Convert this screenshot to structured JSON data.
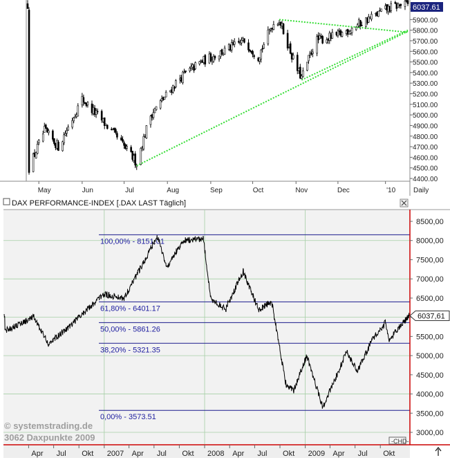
{
  "chart_data": [
    {
      "type": "candlestick",
      "title": "",
      "period_label": "Daily",
      "ylim": [
        4400,
        6100
      ],
      "y_ticks": [
        "6000.00",
        "5900.00",
        "5800.00",
        "5700.00",
        "5600.00",
        "5500.00",
        "5400.00",
        "5300.00",
        "5200.00",
        "5100.00",
        "5000.00",
        "4900.00",
        "4800.00",
        "4700.00",
        "4600.00",
        "4500.00",
        "4400.00"
      ],
      "x_labels": [
        "May",
        "Jun",
        "Jul",
        "Aug",
        "Sep",
        "Oct",
        "Nov",
        "Dec",
        "'10"
      ],
      "last_value_label": "6037.61",
      "approx_close_path": [
        {
          "d": "2009-04-24",
          "c": 4500
        },
        {
          "d": "2009-05-05",
          "c": 4850
        },
        {
          "d": "2009-05-15",
          "c": 4700
        },
        {
          "d": "2009-06-01",
          "c": 5150
        },
        {
          "d": "2009-06-15",
          "c": 4950
        },
        {
          "d": "2009-06-25",
          "c": 4800
        },
        {
          "d": "2009-07-10",
          "c": 4550
        },
        {
          "d": "2009-07-20",
          "c": 5000
        },
        {
          "d": "2009-08-10",
          "c": 5350
        },
        {
          "d": "2009-08-25",
          "c": 5500
        },
        {
          "d": "2009-09-10",
          "c": 5600
        },
        {
          "d": "2009-09-25",
          "c": 5700
        },
        {
          "d": "2009-10-05",
          "c": 5550
        },
        {
          "d": "2009-10-15",
          "c": 5850
        },
        {
          "d": "2009-10-20",
          "c": 5900
        },
        {
          "d": "2009-11-01",
          "c": 5450
        },
        {
          "d": "2009-11-05",
          "c": 5350
        },
        {
          "d": "2009-11-15",
          "c": 5700
        },
        {
          "d": "2009-12-01",
          "c": 5750
        },
        {
          "d": "2009-12-15",
          "c": 5850
        },
        {
          "d": "2010-01-05",
          "c": 6000
        },
        {
          "d": "2010-01-15",
          "c": 6040
        }
      ],
      "trendlines": [
        {
          "from": {
            "d": "2009-07-10",
            "v": 4520
          },
          "to": {
            "d": "2010-01-20",
            "v": 5790
          }
        },
        {
          "from": {
            "d": "2009-10-20",
            "v": 5900
          },
          "to": {
            "d": "2010-01-20",
            "v": 5780
          }
        },
        {
          "from": {
            "d": "2009-11-05",
            "v": 5330
          },
          "to": {
            "d": "2010-01-20",
            "v": 5800
          }
        }
      ],
      "colors": {
        "candles": "#000000",
        "trendline": "#33dd33",
        "last_value_bg": "#1a237e"
      }
    },
    {
      "type": "line",
      "title": "DAX PERFORMANCE-INDEX [.DAX LAST Täglich]",
      "ylim": [
        2750,
        8750
      ],
      "y_ticks": [
        "8500,00",
        "8000,00",
        "7500,00",
        "7000,00",
        "6500,00",
        "6000,00",
        "5500,00",
        "5000,00",
        "4500,00",
        "4000,00",
        "3500,00",
        "3000,00"
      ],
      "x_labels": [
        "Apr",
        "Jul",
        "Okt",
        "2007",
        "Apr",
        "Jul",
        "Okt",
        "2008",
        "Apr",
        "Jul",
        "Okt",
        "2009",
        "Apr",
        "Jul",
        "Okt"
      ],
      "last_value_label": "6037,61",
      "fibonacci_levels": [
        {
          "label": "100,00% - 8151.01",
          "value": 8151.01
        },
        {
          "label": "61,80% - 6401.17",
          "value": 6401.17
        },
        {
          "label": "50,00% - 5861.26",
          "value": 5861.26
        },
        {
          "label": "38,20% - 5321.35",
          "value": 5321.35
        },
        {
          "label": "0,00% - 3573.51",
          "value": 3573.51
        }
      ],
      "approx_close_path": [
        {
          "d": "2006-01-05",
          "c": 5650
        },
        {
          "d": "2006-04-20",
          "c": 6000
        },
        {
          "d": "2006-06-13",
          "c": 5300
        },
        {
          "d": "2006-09-01",
          "c": 5800
        },
        {
          "d": "2006-12-29",
          "c": 6600
        },
        {
          "d": "2007-03-14",
          "c": 6500
        },
        {
          "d": "2007-07-13",
          "c": 8100
        },
        {
          "d": "2007-08-16",
          "c": 7300
        },
        {
          "d": "2007-10-15",
          "c": 8000
        },
        {
          "d": "2007-12-28",
          "c": 8050
        },
        {
          "d": "2008-01-22",
          "c": 6500
        },
        {
          "d": "2008-03-17",
          "c": 6200
        },
        {
          "d": "2008-05-20",
          "c": 7200
        },
        {
          "d": "2008-07-15",
          "c": 6200
        },
        {
          "d": "2008-09-01",
          "c": 6400
        },
        {
          "d": "2008-10-24",
          "c": 4200
        },
        {
          "d": "2008-11-20",
          "c": 4100
        },
        {
          "d": "2009-01-06",
          "c": 5000
        },
        {
          "d": "2009-03-06",
          "c": 3650
        },
        {
          "d": "2009-06-01",
          "c": 5100
        },
        {
          "d": "2009-07-10",
          "c": 4600
        },
        {
          "d": "2009-09-01",
          "c": 5400
        },
        {
          "d": "2009-10-19",
          "c": 5850
        },
        {
          "d": "2009-11-02",
          "c": 5400
        },
        {
          "d": "2009-12-15",
          "c": 5800
        },
        {
          "d": "2010-01-14",
          "c": 6037
        }
      ],
      "colors": {
        "line": "#000000",
        "fib": "#1a1a8c",
        "fib_label": "#2020a0",
        "axis": "#cc0000",
        "grid": "#a6cfa6"
      }
    }
  ],
  "watermark": {
    "line1": "© systemstrading.de",
    "line2": "3062 Daxpunkte 2009"
  },
  "bottom_panel": {
    "close_icon": "close-icon",
    "scroll_icon": "up-arrow-icon",
    "toggle_icon": "chain-icon"
  }
}
